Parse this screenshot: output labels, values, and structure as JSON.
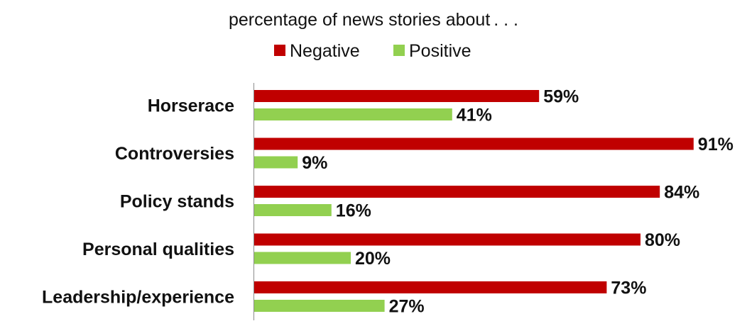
{
  "chart_data": {
    "type": "bar",
    "orientation": "horizontal",
    "title": "percentage of news stories about . . .",
    "categories": [
      "Horserace",
      "Controversies",
      "Policy stands",
      "Personal qualities",
      "Leadership/experience"
    ],
    "series": [
      {
        "name": "Negative",
        "color": "#c00000",
        "values": [
          59,
          91,
          84,
          80,
          73
        ]
      },
      {
        "name": "Positive",
        "color": "#92d050",
        "values": [
          41,
          9,
          16,
          20,
          27
        ]
      }
    ],
    "value_suffix": "%",
    "xlim": [
      0,
      100
    ],
    "grid": false,
    "legend_position": "top-center"
  }
}
